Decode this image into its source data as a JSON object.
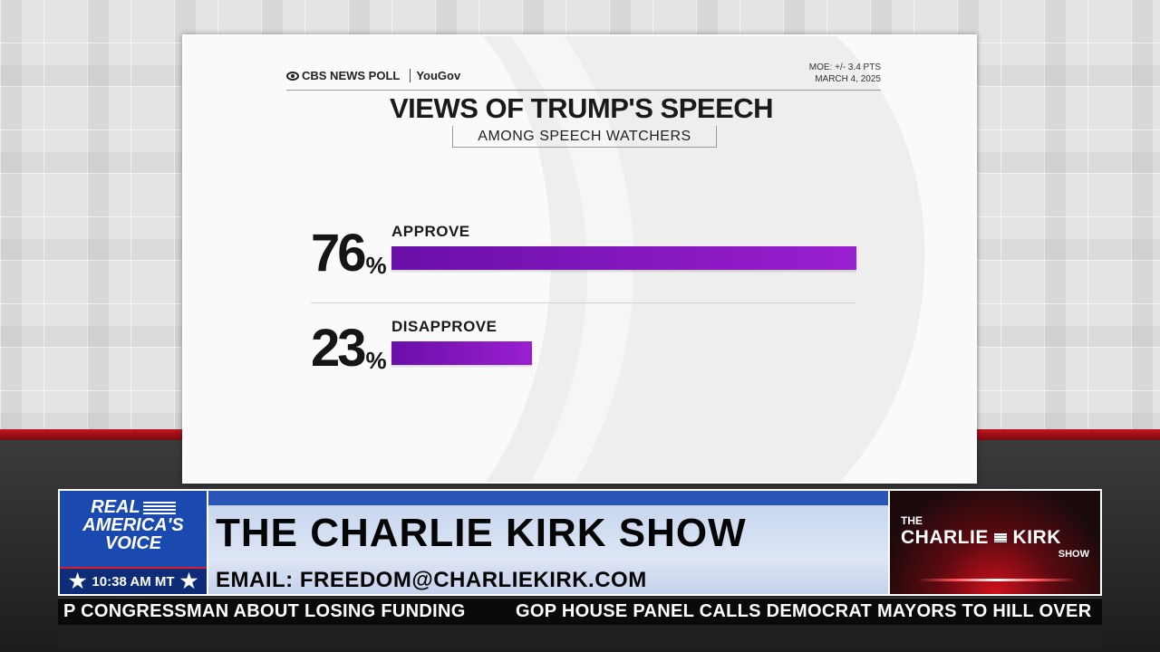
{
  "poll": {
    "source": "CBS NEWS POLL",
    "partner": "YouGov",
    "moe": "MOE: +/- 3.4 PTS",
    "date": "MARCH 4, 2025",
    "title": "VIEWS OF TRUMP'S SPEECH",
    "subtitle": "AMONG SPEECH WATCHERS",
    "rows": [
      {
        "label": "APPROVE",
        "value": 76,
        "display": "76",
        "unit": "%"
      },
      {
        "label": "DISAPPROVE",
        "value": 23,
        "display": "23",
        "unit": "%"
      }
    ],
    "bar_color": "#8a18c4"
  },
  "chart_data": {
    "type": "bar",
    "title": "VIEWS OF TRUMP'S SPEECH",
    "subtitle": "AMONG SPEECH WATCHERS",
    "categories": [
      "APPROVE",
      "DISAPPROVE"
    ],
    "values": [
      76,
      23
    ],
    "unit": "%",
    "orientation": "horizontal",
    "xlim": [
      0,
      76
    ]
  },
  "network": {
    "logo_line1": "REAL",
    "logo_line2": "AMERICA'S",
    "logo_line3": "VOICE",
    "time": "10:38 AM MT"
  },
  "show": {
    "title": "THE CHARLIE KIRK SHOW",
    "email": "EMAIL: FREEDOM@CHARLIEKIRK.COM",
    "logo_the": "THE",
    "logo_main_1": "CHARLIE",
    "logo_main_2": "KIRK",
    "logo_show": "SHOW"
  },
  "ticker": {
    "item1": "P CONGRESSMAN ABOUT LOSING FUNDING",
    "item2": "GOP HOUSE PANEL CALLS DEMOCRAT MAYORS TO HILL OVER"
  },
  "colors": {
    "accent_red": "#c3151f",
    "network_blue": "#1a4ab0",
    "bar_purple": "#8a18c4"
  }
}
